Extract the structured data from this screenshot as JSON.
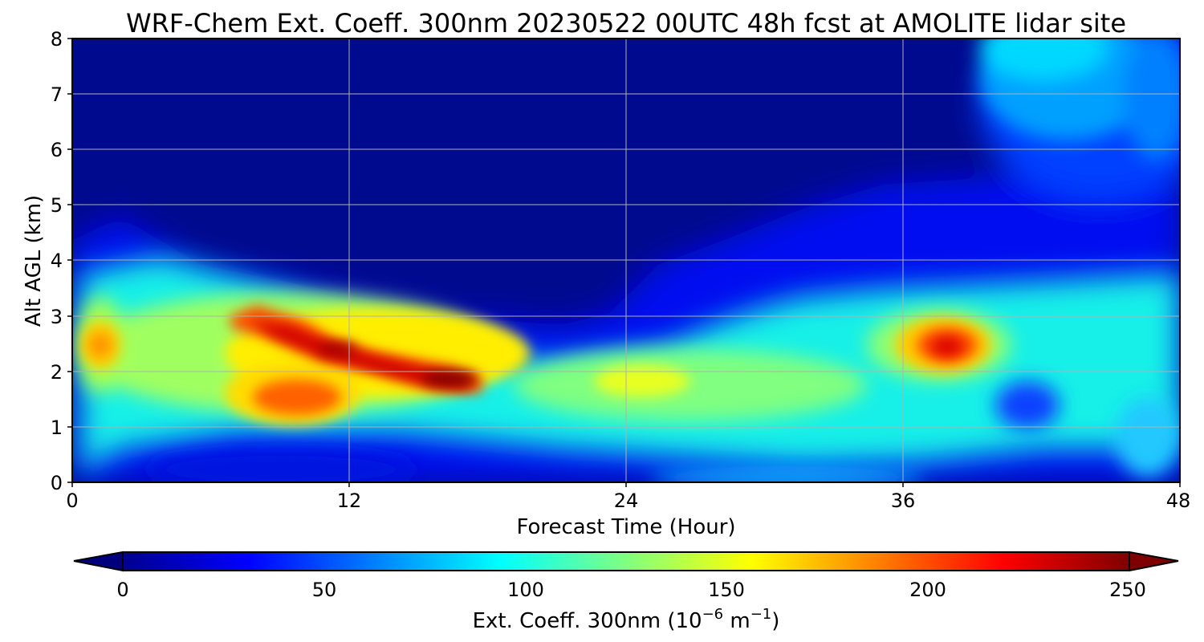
{
  "chart_data": {
    "type": "heatmap",
    "title": "WRF-Chem Ext. Coeff. 300nm  20230522 00UTC 48h fcst at AMOLITE lidar site",
    "xlabel": "Forecast Time (Hour)",
    "ylabel": "Alt AGL (km)",
    "xlim": [
      0,
      48
    ],
    "ylim": [
      0,
      8
    ],
    "x_ticks": [
      "0",
      "12",
      "24",
      "36",
      "48"
    ],
    "y_ticks": [
      "0",
      "1",
      "2",
      "3",
      "4",
      "5",
      "6",
      "7",
      "8"
    ],
    "grid": true,
    "colormap": "jet",
    "colorbar": {
      "label_main": "Ext. Coeff. 300nm  (10",
      "label_exp1": "−6",
      "label_mid": " m",
      "label_exp2": "−1",
      "label_end": ")",
      "range": [
        0,
        250
      ],
      "ticks": [
        "0",
        "50",
        "100",
        "150",
        "200",
        "250"
      ],
      "extend": "both",
      "orientation": "horizontal"
    },
    "features": [
      {
        "hour": 12,
        "alt_km": 2.4,
        "value": 225
      },
      {
        "hour": 16,
        "alt_km": 1.85,
        "value": 245
      },
      {
        "hour": 8,
        "alt_km": 2.85,
        "value": 205
      },
      {
        "hour": 10,
        "alt_km": 1.45,
        "value": 200
      },
      {
        "hour": 38,
        "alt_km": 2.45,
        "value": 215
      },
      {
        "hour": 1,
        "alt_km": 2.45,
        "value": 180
      },
      {
        "hour": 26,
        "alt_km": 1.7,
        "value": 140
      },
      {
        "hour": 41.5,
        "alt_km": 1.3,
        "value": 45
      },
      {
        "hour": 45,
        "alt_km": 7.5,
        "value": 80
      },
      {
        "hour": 10,
        "alt_km": 0.25,
        "value": 15
      }
    ]
  }
}
